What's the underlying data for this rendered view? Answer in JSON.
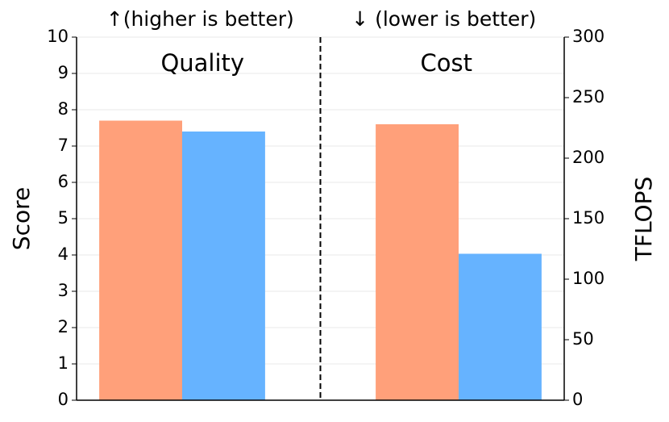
{
  "chart_data": {
    "type": "bar",
    "categories": [
      "Quality",
      "Cost"
    ],
    "annotations": [
      "↑(higher is better)",
      "↓ (lower is better)"
    ],
    "ylabel": "Score",
    "y2label": "TFLOPS",
    "ylim": [
      0,
      10
    ],
    "yticks": [
      0,
      1,
      2,
      3,
      4,
      5,
      6,
      7,
      8,
      9,
      10
    ],
    "y2lim": [
      0,
      300
    ],
    "y2ticks": [
      0,
      50,
      100,
      150,
      200,
      250,
      300
    ],
    "grid": true,
    "series": [
      {
        "color": "#ffa07a",
        "values": [
          7.7,
          null
        ]
      },
      {
        "color": "#66b3ff",
        "values": [
          7.4,
          null
        ]
      },
      {
        "color": "#ffa07a",
        "axis": "y2",
        "values": [
          null,
          228
        ]
      },
      {
        "color": "#66b3ff",
        "axis": "y2",
        "values": [
          null,
          121
        ]
      }
    ]
  }
}
